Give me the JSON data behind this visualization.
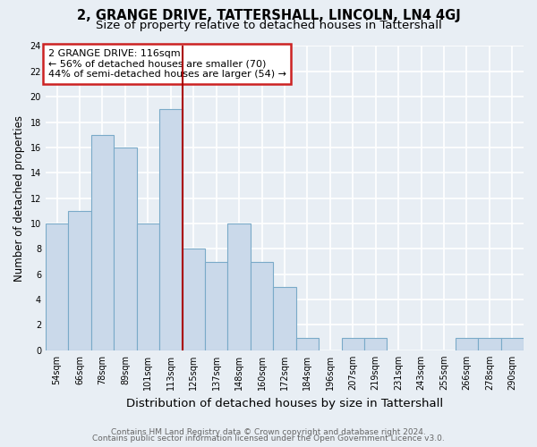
{
  "title": "2, GRANGE DRIVE, TATTERSHALL, LINCOLN, LN4 4GJ",
  "subtitle": "Size of property relative to detached houses in Tattershall",
  "xlabel": "Distribution of detached houses by size in Tattershall",
  "ylabel": "Number of detached properties",
  "bins": [
    "54sqm",
    "66sqm",
    "78sqm",
    "89sqm",
    "101sqm",
    "113sqm",
    "125sqm",
    "137sqm",
    "148sqm",
    "160sqm",
    "172sqm",
    "184sqm",
    "196sqm",
    "207sqm",
    "219sqm",
    "231sqm",
    "243sqm",
    "255sqm",
    "266sqm",
    "278sqm",
    "290sqm"
  ],
  "values": [
    10,
    11,
    17,
    16,
    10,
    19,
    8,
    7,
    10,
    7,
    5,
    1,
    0,
    1,
    1,
    0,
    0,
    0,
    1,
    1,
    1
  ],
  "bar_color": "#cad9ea",
  "bar_edge_color": "#7aaac8",
  "bar_linewidth": 0.8,
  "vline_x": 5.5,
  "vline_color": "#aa0000",
  "vline_linewidth": 1.5,
  "annotation_text": "2 GRANGE DRIVE: 116sqm\n← 56% of detached houses are smaller (70)\n44% of semi-detached houses are larger (54) →",
  "annotation_box_color": "white",
  "annotation_box_edge": "#cc2222",
  "ylim": [
    0,
    24
  ],
  "yticks": [
    0,
    2,
    4,
    6,
    8,
    10,
    12,
    14,
    16,
    18,
    20,
    22,
    24
  ],
  "footer1": "Contains HM Land Registry data © Crown copyright and database right 2024.",
  "footer2": "Contains public sector information licensed under the Open Government Licence v3.0.",
  "background_color": "#e8eef4",
  "grid_color": "#ffffff",
  "title_fontsize": 10.5,
  "subtitle_fontsize": 9.5,
  "xlabel_fontsize": 9.5,
  "ylabel_fontsize": 8.5,
  "tick_fontsize": 7,
  "footer_fontsize": 6.5,
  "annotation_fontsize": 8
}
